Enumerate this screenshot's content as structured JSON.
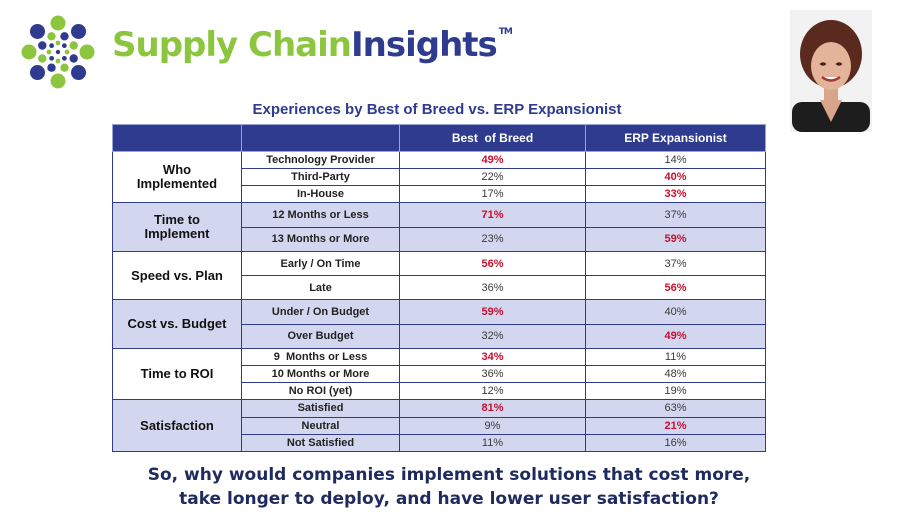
{
  "brand": {
    "name_part1": "Supply Chain",
    "name_part2": "Insights",
    "trademark": "TM"
  },
  "colors": {
    "navy": "#2e3b8f",
    "green": "#8cc63f",
    "highlight_red": "#c8102e",
    "band_lavender": "#d3d6ef"
  },
  "table": {
    "title": "Experiences by Best of Breed vs. ERP Expansionist",
    "columns": [
      "",
      "",
      "Best  of Breed",
      "ERP Expansionist"
    ],
    "groups": [
      {
        "category": "Who Implemented",
        "rows": [
          {
            "item": "Technology Provider",
            "bob": "49%",
            "erp": "14%",
            "highlight": "bob"
          },
          {
            "item": "Third-Party",
            "bob": "22%",
            "erp": "40%",
            "highlight": "erp"
          },
          {
            "item": "In-House",
            "bob": "17%",
            "erp": "33%",
            "highlight": "erp"
          }
        ]
      },
      {
        "category": "Time to Implement",
        "rows": [
          {
            "item": "12 Months or Less",
            "bob": "71%",
            "erp": "37%",
            "highlight": "bob"
          },
          {
            "item": "13 Months or More",
            "bob": "23%",
            "erp": "59%",
            "highlight": "erp"
          }
        ]
      },
      {
        "category": "Speed vs. Plan",
        "rows": [
          {
            "item": "Early / On Time",
            "bob": "56%",
            "erp": "37%",
            "highlight": "bob"
          },
          {
            "item": "Late",
            "bob": "36%",
            "erp": "56%",
            "highlight": "erp"
          }
        ]
      },
      {
        "category": "Cost vs. Budget",
        "rows": [
          {
            "item": "Under / On Budget",
            "bob": "59%",
            "erp": "40%",
            "highlight": "bob"
          },
          {
            "item": "Over Budget",
            "bob": "32%",
            "erp": "49%",
            "highlight": "erp"
          }
        ]
      },
      {
        "category": "Time to ROI",
        "rows": [
          {
            "item": "9  Months or Less",
            "bob": "34%",
            "erp": "11%",
            "highlight": "bob"
          },
          {
            "item": "10 Months or More",
            "bob": "36%",
            "erp": "48%",
            "highlight": ""
          },
          {
            "item": "No ROI (yet)",
            "bob": "12%",
            "erp": "19%",
            "highlight": ""
          }
        ]
      },
      {
        "category": "Satisfaction",
        "rows": [
          {
            "item": "Satisfied",
            "bob": "81%",
            "erp": "63%",
            "highlight": "bob"
          },
          {
            "item": "Neutral",
            "bob": "9%",
            "erp": "21%",
            "highlight": "erp"
          },
          {
            "item": "Not Satisfied",
            "bob": "11%",
            "erp": "16%",
            "highlight": ""
          }
        ]
      }
    ]
  },
  "question": {
    "line1": "So, why would companies implement solutions that cost more,",
    "line2": "take longer to deploy, and have lower user satisfaction?"
  }
}
